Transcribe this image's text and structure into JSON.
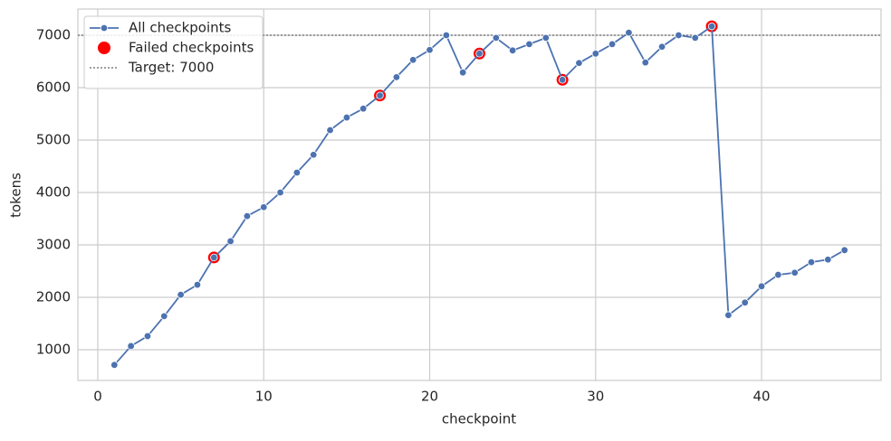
{
  "chart_data": {
    "type": "line",
    "x_label": "checkpoint",
    "y_label": "tokens",
    "xlim": [
      -1.2,
      47.2
    ],
    "ylim": [
      414,
      7500
    ],
    "xticks": [
      0,
      10,
      20,
      30,
      40
    ],
    "yticks": [
      1000,
      2000,
      3000,
      4000,
      5000,
      6000,
      7000
    ],
    "grid": true,
    "legend": "upper-left",
    "series": [
      {
        "name": "All checkpoints",
        "color": "#4c72b0",
        "kind": "line",
        "x": [
          1,
          2,
          3,
          4,
          5,
          6,
          7,
          8,
          9,
          10,
          11,
          12,
          13,
          14,
          15,
          16,
          17,
          18,
          19,
          20,
          21,
          22,
          23,
          24,
          25,
          26,
          27,
          28,
          29,
          30,
          31,
          32,
          33,
          34,
          35,
          36,
          37,
          38,
          39,
          40,
          41,
          42,
          43,
          44,
          45
        ],
        "values": [
          710,
          1070,
          1260,
          1640,
          2050,
          2240,
          2760,
          3070,
          3550,
          3720,
          4000,
          4380,
          4720,
          5190,
          5430,
          5600,
          5850,
          6200,
          6530,
          6720,
          7000,
          6290,
          6650,
          6950,
          6710,
          6830,
          6950,
          6150,
          6470,
          6650,
          6830,
          7050,
          6480,
          6780,
          7000,
          6950,
          7170,
          1660,
          1900,
          2210,
          2430,
          2470,
          2670,
          2720,
          2900
        ]
      },
      {
        "name": "Failed checkpoints",
        "color": "#ff0000",
        "kind": "scatter",
        "x": [
          7,
          17,
          23,
          28,
          37
        ],
        "values": [
          2760,
          5850,
          6650,
          6150,
          7170
        ]
      }
    ],
    "hlines": [
      {
        "name": "Target: 7000",
        "value": 7000,
        "color": "#808080"
      }
    ]
  }
}
